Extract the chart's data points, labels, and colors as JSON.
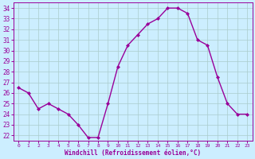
{
  "x": [
    0,
    1,
    2,
    3,
    4,
    5,
    6,
    7,
    8,
    9,
    10,
    11,
    12,
    13,
    14,
    15,
    16,
    17,
    18,
    19,
    20,
    21,
    22,
    23
  ],
  "y": [
    26.5,
    26.0,
    24.5,
    25.0,
    24.5,
    24.0,
    23.0,
    21.8,
    21.8,
    25.0,
    28.5,
    30.5,
    31.5,
    32.5,
    33.0,
    34.0,
    34.0,
    33.5,
    31.0,
    30.5,
    27.5,
    25.0,
    24.0,
    24.0
  ],
  "line_color": "#990099",
  "marker": "D",
  "marker_size": 2,
  "bg_color": "#cceeff",
  "grid_color": "#aacccc",
  "xlabel": "Windchill (Refroidissement éolien,°C)",
  "xlabel_color": "#990099",
  "tick_color": "#990099",
  "label_color": "#990099",
  "xlim": [
    -0.5,
    23.5
  ],
  "ylim": [
    21.5,
    34.5
  ],
  "yticks": [
    22,
    23,
    24,
    25,
    26,
    27,
    28,
    29,
    30,
    31,
    32,
    33,
    34
  ],
  "xticks": [
    0,
    1,
    2,
    3,
    4,
    5,
    6,
    7,
    8,
    9,
    10,
    11,
    12,
    13,
    14,
    15,
    16,
    17,
    18,
    19,
    20,
    21,
    22,
    23
  ],
  "linewidth": 1.0,
  "figwidth": 3.2,
  "figheight": 2.0,
  "dpi": 100
}
